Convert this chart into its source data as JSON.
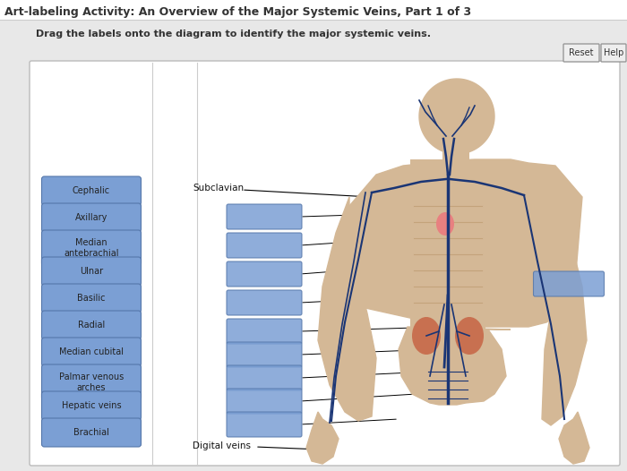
{
  "title": "Art-labeling Activity: An Overview of the Major Systemic Veins, Part 1 of 3",
  "instruction": "Drag the labels onto the diagram to identify the major systemic veins.",
  "bg_outer": "#e8e8e8",
  "bg_panel": "#f0f0f0",
  "bg_inner": "#ffffff",
  "button_color": "#7b9fd4",
  "button_border": "#5577aa",
  "button_text_color": "#222222",
  "left_buttons": [
    "Cephalic",
    "Axillary",
    "Median\nantebrachial",
    "Ulnar",
    "Basilic",
    "Radial",
    "Median cubital",
    "Palmar venous\narches",
    "Hepatic veins",
    "Brachial"
  ],
  "label_subclavian": "Subclavian",
  "label_digital": "Digital veins",
  "reset_label": "Reset",
  "help_label": "Help"
}
